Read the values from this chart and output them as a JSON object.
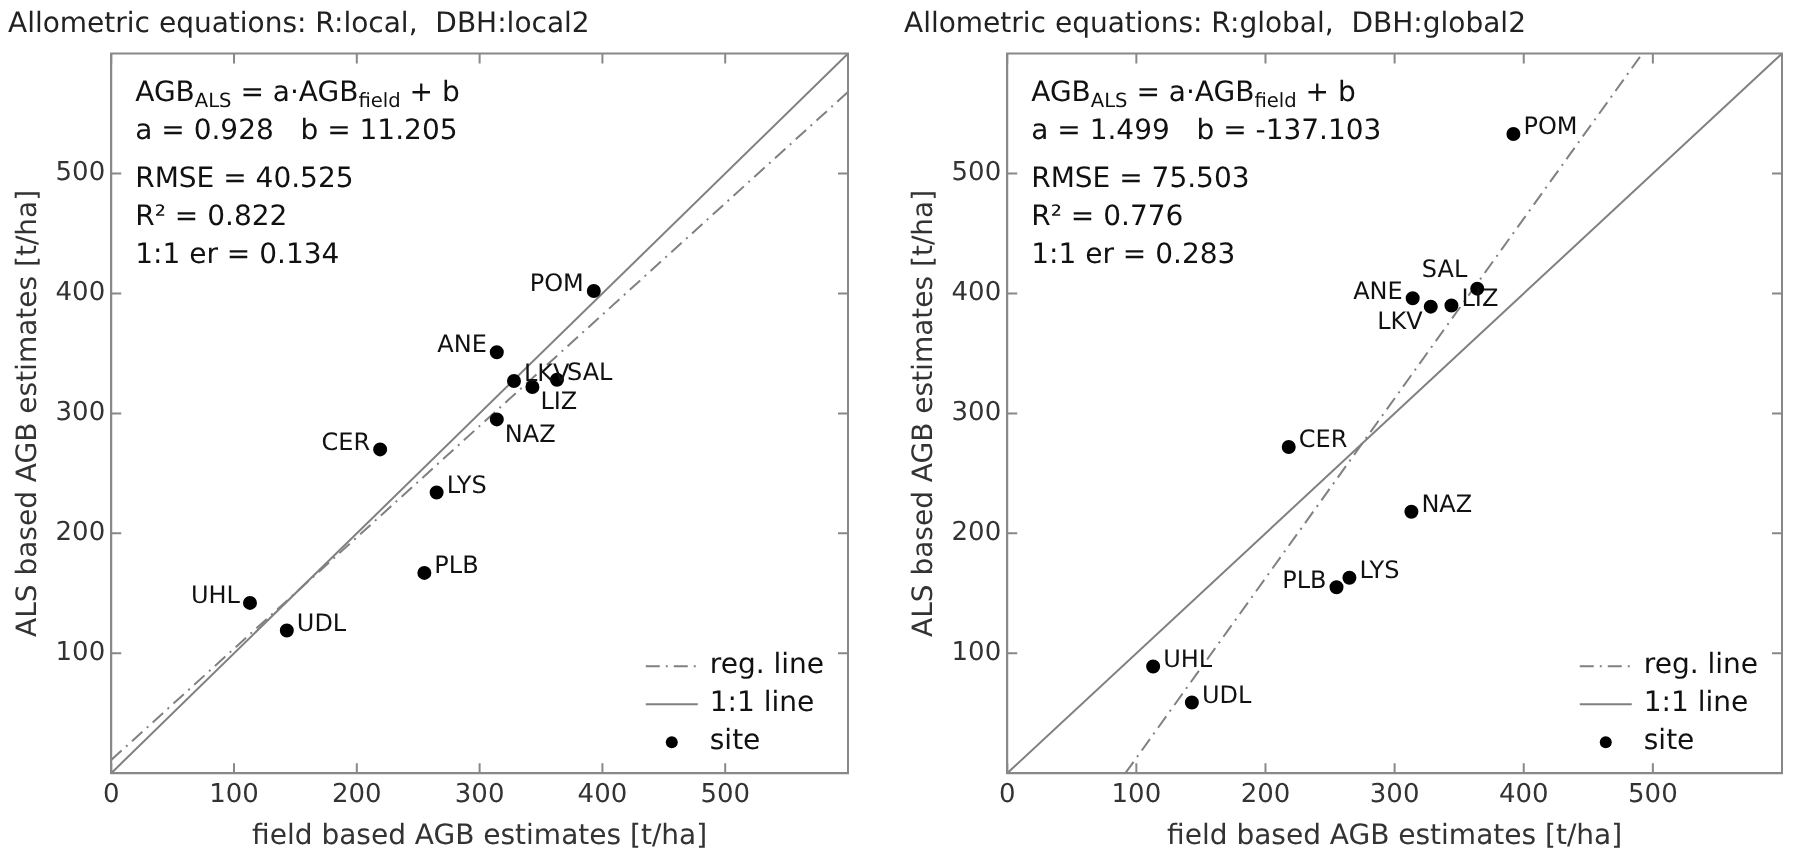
{
  "chart_data": [
    {
      "type": "scatter",
      "title": "Allometric equations: R:local,  DBH:local2",
      "xlabel": "field based AGB estimates [t/ha]",
      "ylabel": "ALS based AGB estimates [t/ha]",
      "xlim": [
        0,
        600
      ],
      "ylim": [
        0,
        600
      ],
      "xticks": [
        0,
        100,
        200,
        300,
        400,
        500
      ],
      "yticks": [
        100,
        200,
        300,
        400,
        500
      ],
      "grid": false,
      "legend": "bottom right",
      "series": [
        {
          "name": "reg. line",
          "type": "line",
          "color": "#808080",
          "line_style": "dashed",
          "marker": "none",
          "x": [
            0,
            600
          ],
          "values": [
            11,
            568
          ]
        },
        {
          "name": "1:1 line",
          "type": "line",
          "color": "#808080",
          "line_style": "solid",
          "marker": "none",
          "x": [
            0,
            600
          ],
          "values": [
            0,
            600
          ]
        },
        {
          "name": "site",
          "type": "scatter",
          "color": "#000000",
          "marker": "circle",
          "x": [
            113,
            143,
            255,
            265,
            219,
            314,
            328,
            343,
            363,
            314,
            393
          ],
          "values": [
            142,
            119,
            167,
            234,
            270,
            295,
            327,
            322,
            328,
            351,
            402
          ]
        }
      ],
      "annotations": [
        "AGB$_{ALS}$ = a·AGB$_{field}$ + b",
        "a = 0.928   b = 11.205",
        "RMSE = 40.525",
        "R² = 0.822",
        "1:1 er = 0.134",
        {
          "text": "UHL",
          "x": 113,
          "y": 142
        },
        {
          "text": "UDL",
          "x": 143,
          "y": 119
        },
        {
          "text": "PLB",
          "x": 255,
          "y": 167
        },
        {
          "text": "LYS",
          "x": 265,
          "y": 234
        },
        {
          "text": "CER",
          "x": 219,
          "y": 270
        },
        {
          "text": "NAZ",
          "x": 314,
          "y": 295
        },
        {
          "text": "LKV",
          "x": 328,
          "y": 327
        },
        {
          "text": "LIZ",
          "x": 343,
          "y": 322
        },
        {
          "text": "SAL",
          "x": 363,
          "y": 328
        },
        {
          "text": "ANE",
          "x": 314,
          "y": 351
        },
        {
          "text": "POM",
          "x": 393,
          "y": 402
        }
      ]
    },
    {
      "type": "scatter",
      "title": "Allometric equations: R:global,  DBH:global2",
      "xlabel": "field based AGB estimates [t/ha]",
      "ylabel": "ALS based AGB estimates [t/ha]",
      "xlim": [
        0,
        600
      ],
      "ylim": [
        0,
        600
      ],
      "xticks": [
        0,
        100,
        200,
        300,
        400,
        500
      ],
      "yticks": [
        100,
        200,
        300,
        400,
        500
      ],
      "grid": false,
      "legend": "bottom right",
      "series": [
        {
          "name": "reg. line",
          "type": "line",
          "color": "#808080",
          "line_style": "dashed",
          "marker": "none",
          "x": [
            91.5,
            491.8
          ],
          "values": [
            0,
            600
          ]
        },
        {
          "name": "1:1 line",
          "type": "line",
          "color": "#808080",
          "line_style": "solid",
          "marker": "none",
          "x": [
            0,
            600
          ],
          "values": [
            0,
            600
          ]
        },
        {
          "name": "site",
          "type": "scatter",
          "color": "#000000",
          "marker": "circle",
          "x": [
            113,
            143,
            255,
            265,
            218,
            313,
            314,
            328,
            344,
            364,
            392
          ],
          "values": [
            89,
            59,
            155,
            163,
            272,
            218,
            396,
            389,
            390,
            404,
            533
          ]
        }
      ],
      "annotations": [
        "AGB$_{ALS}$ = a·AGB$_{field}$ + b",
        "a = 1.499   b = -137.103",
        "RMSE = 75.503",
        "R² = 0.776",
        "1:1 er = 0.283",
        {
          "text": "UHL",
          "x": 113,
          "y": 89
        },
        {
          "text": "UDL",
          "x": 143,
          "y": 59
        },
        {
          "text": "PLB",
          "x": 255,
          "y": 155
        },
        {
          "text": "LYS",
          "x": 265,
          "y": 163
        },
        {
          "text": "CER",
          "x": 218,
          "y": 272
        },
        {
          "text": "NAZ",
          "x": 313,
          "y": 218
        },
        {
          "text": "ANE",
          "x": 314,
          "y": 396
        },
        {
          "text": "LKV",
          "x": 328,
          "y": 389
        },
        {
          "text": "LIZ",
          "x": 344,
          "y": 390
        },
        {
          "text": "SAL",
          "x": 364,
          "y": 404
        },
        {
          "text": "POM",
          "x": 392,
          "y": 533
        }
      ]
    }
  ]
}
